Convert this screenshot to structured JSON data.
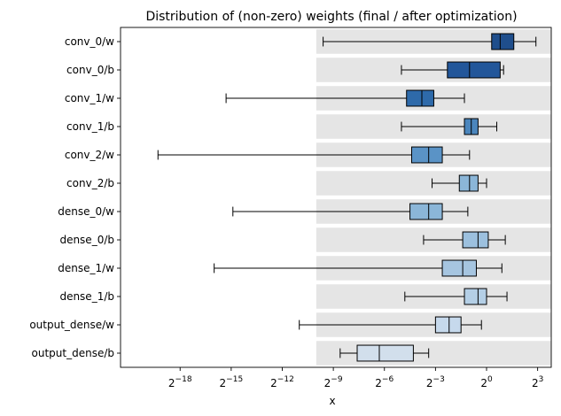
{
  "chart_data": {
    "type": "boxplot",
    "title": "Distribution of (non-zero) weights (final / after optimization)",
    "xlabel": "x",
    "ylabel": "",
    "x_scale": "log2",
    "xlim_log2": [
      -21.5,
      3.8
    ],
    "x_ticks": [
      {
        "exp": -18,
        "label": "2",
        "sup": "−18"
      },
      {
        "exp": -15,
        "label": "2",
        "sup": "−15"
      },
      {
        "exp": -12,
        "label": "2",
        "sup": "−12"
      },
      {
        "exp": -9,
        "label": "2",
        "sup": "−9"
      },
      {
        "exp": -6,
        "label": "2",
        "sup": "−6"
      },
      {
        "exp": -3,
        "label": "2",
        "sup": "−3"
      },
      {
        "exp": 0,
        "label": "2",
        "sup": "0"
      },
      {
        "exp": 3,
        "label": "2",
        "sup": "3"
      }
    ],
    "background_band_from_log2": -10.0,
    "band_color": "#e5e5e5",
    "series": [
      {
        "name": "conv_0/w",
        "whislo": -9.6,
        "q1": 0.3,
        "med": 0.8,
        "q3": 1.6,
        "whishi": 2.9,
        "color": "#1f4e8c"
      },
      {
        "name": "conv_0/b",
        "whislo": -5.0,
        "q1": -2.3,
        "med": -1.0,
        "q3": 0.8,
        "whishi": 1.0,
        "color": "#22569a"
      },
      {
        "name": "conv_1/w",
        "whislo": -15.3,
        "q1": -4.7,
        "med": -3.8,
        "q3": -3.1,
        "whishi": -1.3,
        "color": "#2e6aaa"
      },
      {
        "name": "conv_1/b",
        "whislo": -5.0,
        "q1": -1.3,
        "med": -0.9,
        "q3": -0.5,
        "whishi": 0.6,
        "color": "#4b86bd"
      },
      {
        "name": "conv_2/w",
        "whislo": -19.3,
        "q1": -4.4,
        "med": -3.4,
        "q3": -2.6,
        "whishi": -1.0,
        "color": "#5a93c6"
      },
      {
        "name": "conv_2/b",
        "whislo": -3.2,
        "q1": -1.6,
        "med": -1.0,
        "q3": -0.5,
        "whishi": 0.0,
        "color": "#8bb6d8"
      },
      {
        "name": "dense_0/w",
        "whislo": -14.9,
        "q1": -4.5,
        "med": -3.4,
        "q3": -2.6,
        "whishi": -1.1,
        "color": "#8bb6d8"
      },
      {
        "name": "dense_0/b",
        "whislo": -3.7,
        "q1": -1.4,
        "med": -0.5,
        "q3": 0.1,
        "whishi": 1.1,
        "color": "#9cc0de"
      },
      {
        "name": "dense_1/w",
        "whislo": -16.0,
        "q1": -2.6,
        "med": -1.4,
        "q3": -0.6,
        "whishi": 0.9,
        "color": "#a6c5e0"
      },
      {
        "name": "dense_1/b",
        "whislo": -4.8,
        "q1": -1.3,
        "med": -0.5,
        "q3": 0.0,
        "whishi": 1.2,
        "color": "#b4cfe6"
      },
      {
        "name": "output_dense/w",
        "whislo": -11.0,
        "q1": -3.0,
        "med": -2.2,
        "q3": -1.5,
        "whishi": -0.3,
        "color": "#c6d9ec"
      },
      {
        "name": "output_dense/b",
        "whislo": -8.6,
        "q1": -7.6,
        "med": -6.3,
        "q3": -4.3,
        "whishi": -3.4,
        "color": "#d2dfec"
      }
    ]
  }
}
